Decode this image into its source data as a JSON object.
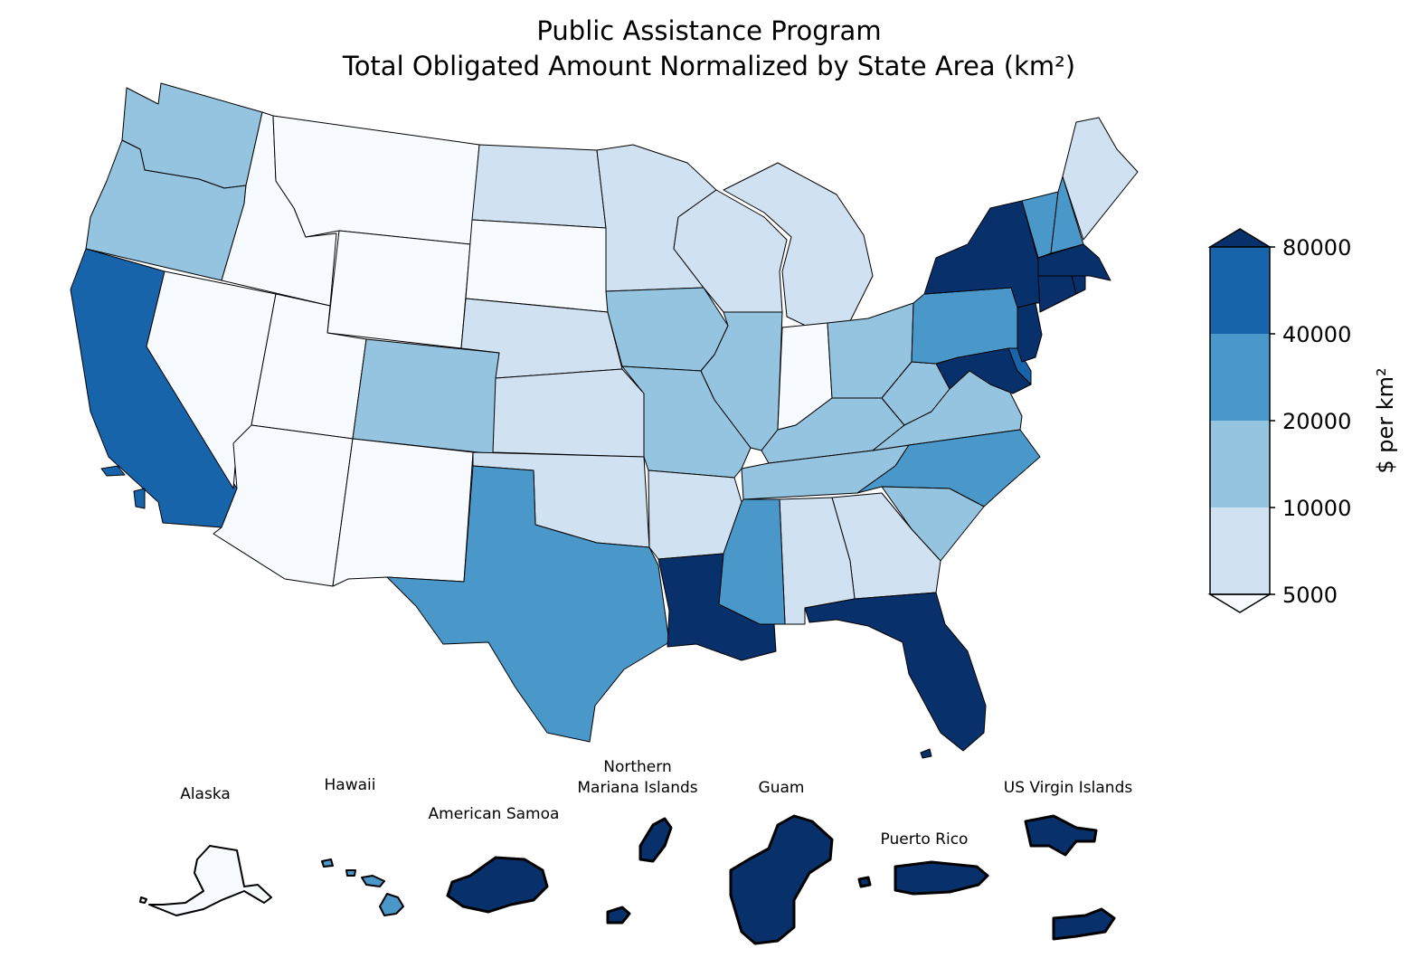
{
  "title": {
    "line1": "Public Assistance Program",
    "line2": "Total Obligated Amount Normalized by State Area (km²)"
  },
  "colorbar": {
    "label": "$ per km²",
    "ticks": [
      "5000",
      "10000",
      "20000",
      "40000",
      "80000"
    ],
    "bins": [
      {
        "range": "<5000",
        "color": "#f7fbff"
      },
      {
        "range": "5000-10000",
        "color": "#d0e1f2"
      },
      {
        "range": "10000-20000",
        "color": "#94c4df"
      },
      {
        "range": "20000-40000",
        "color": "#4a98c9"
      },
      {
        "range": "40000-80000",
        "color": "#1764ab"
      },
      {
        "range": ">80000",
        "color": "#08306b"
      }
    ]
  },
  "insets": {
    "alaska": "Alaska",
    "hawaii": "Hawaii",
    "american_samoa": "American Samoa",
    "northern_mariana_line1": "Northern",
    "northern_mariana_line2": "Mariana Islands",
    "guam": "Guam",
    "puerto_rico": "Puerto Rico",
    "us_virgin_islands": "US Virgin Islands"
  },
  "map_data": {
    "scale": "binned",
    "states": {
      "Washington": "10000-20000",
      "Oregon": "10000-20000",
      "California": "40000-80000",
      "Idaho": "<5000",
      "Nevada": "<5000",
      "Montana": "<5000",
      "Wyoming": "<5000",
      "Utah": "<5000",
      "Arizona": "<5000",
      "Colorado": "10000-20000",
      "New Mexico": "<5000",
      "North Dakota": "5000-10000",
      "South Dakota": "<5000",
      "Nebraska": "5000-10000",
      "Kansas": "5000-10000",
      "Oklahoma": "5000-10000",
      "Texas": "20000-40000",
      "Minnesota": "5000-10000",
      "Iowa": "10000-20000",
      "Missouri": "10000-20000",
      "Arkansas": "5000-10000",
      "Louisiana": ">80000",
      "Wisconsin": "5000-10000",
      "Illinois": "10000-20000",
      "Michigan": "5000-10000",
      "Indiana": "<5000",
      "Ohio": "10000-20000",
      "Kentucky": "10000-20000",
      "Tennessee": "10000-20000",
      "Mississippi": "20000-40000",
      "Alabama": "5000-10000",
      "Georgia": "5000-10000",
      "Florida": ">80000",
      "South Carolina": "10000-20000",
      "North Carolina": "20000-40000",
      "Virginia": "10000-20000",
      "West Virginia": "10000-20000",
      "Maryland": ">80000",
      "Delaware": "40000-80000",
      "Pennsylvania": "20000-40000",
      "New Jersey": ">80000",
      "New York": ">80000",
      "Connecticut": ">80000",
      "Rhode Island": ">80000",
      "Massachusetts": ">80000",
      "Vermont": "20000-40000",
      "New Hampshire": "20000-40000",
      "Maine": "5000-10000",
      "Alaska": "<5000",
      "Hawaii": "20000-40000",
      "American Samoa": ">80000",
      "Northern Mariana Islands": ">80000",
      "Guam": ">80000",
      "Puerto Rico": ">80000",
      "US Virgin Islands": ">80000"
    }
  }
}
